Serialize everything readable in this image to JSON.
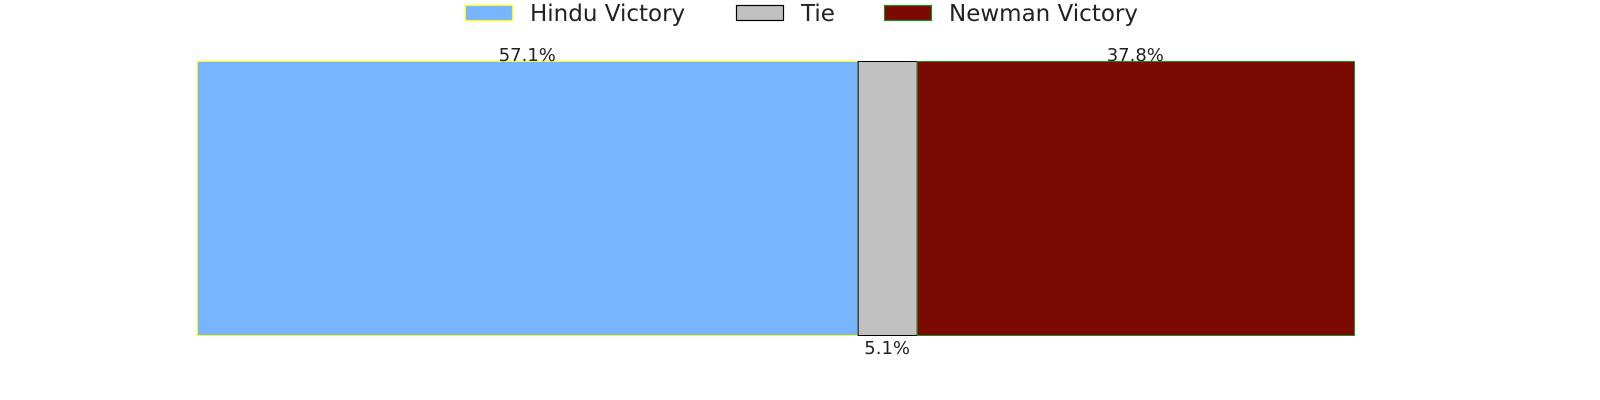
{
  "chart_data": {
    "type": "bar",
    "orientation": "horizontal-stacked",
    "title": "",
    "xlabel": "",
    "ylabel": "",
    "xlim": [
      0,
      100
    ],
    "grid": false,
    "legend_position": "top",
    "series": [
      {
        "name": "Hindu Victory",
        "value": 57.1,
        "label": "57.1%",
        "color": "#77b5fe",
        "edge": "#ffff00",
        "label_position": "above"
      },
      {
        "name": "Tie",
        "value": 5.1,
        "label": "5.1%",
        "color": "#c0c0c0",
        "edge": "#000000",
        "label_position": "below"
      },
      {
        "name": "Newman Victory",
        "value": 37.8,
        "label": "37.8%",
        "color": "#7b0a02",
        "edge": "#228b22",
        "label_position": "above"
      }
    ]
  }
}
